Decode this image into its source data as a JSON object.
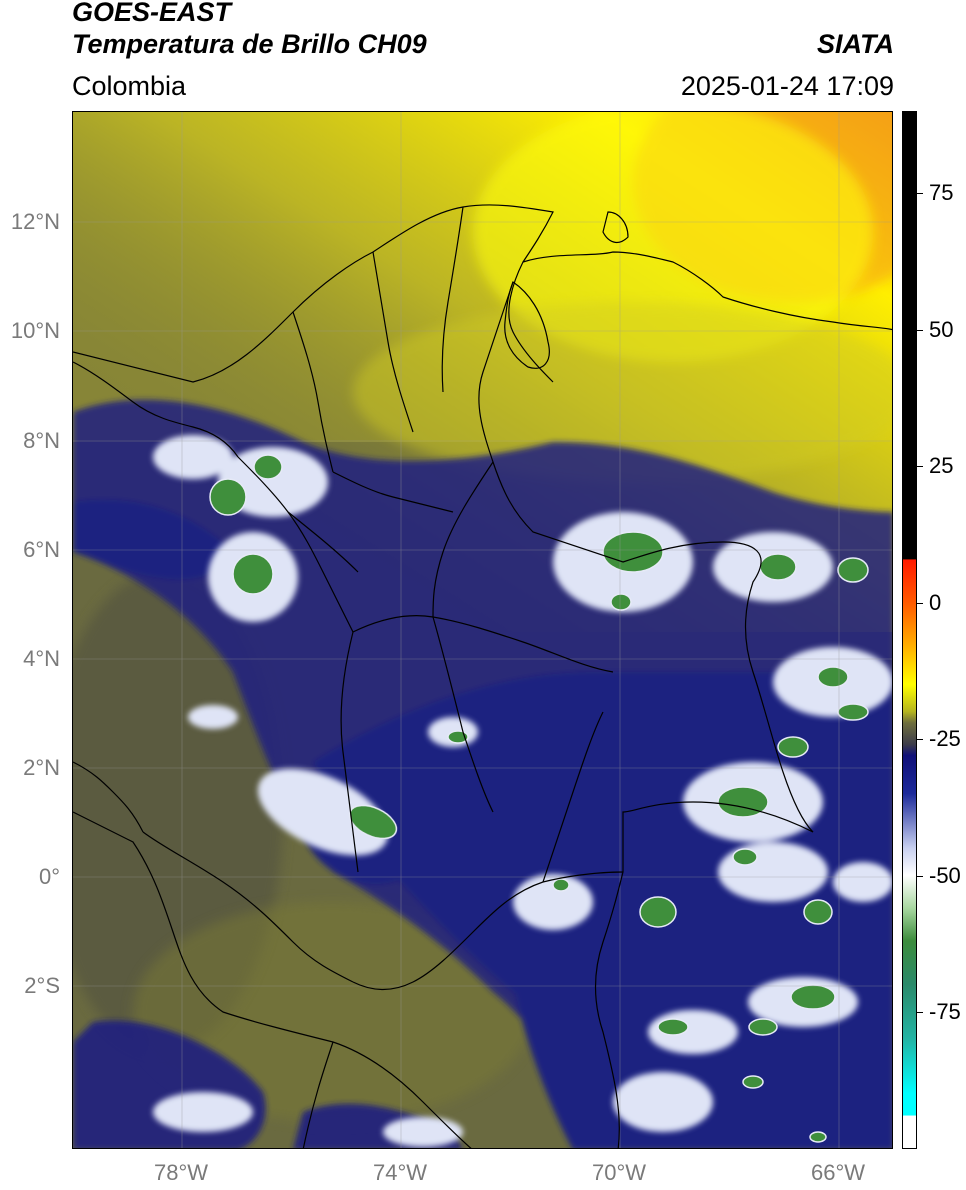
{
  "header": {
    "title": "GOES-EAST",
    "subtitle": "Temperatura de Brillo CH09",
    "organization": "SIATA",
    "region": "Colombia",
    "timestamp": "2025-01-24 17:09"
  },
  "map": {
    "lon_range": [
      -80,
      -65
    ],
    "lat_range": [
      -5,
      14
    ],
    "lat_ticks": [
      {
        "value": 12,
        "label": "12°N"
      },
      {
        "value": 10,
        "label": "10°N"
      },
      {
        "value": 8,
        "label": "8°N"
      },
      {
        "value": 6,
        "label": "6°N"
      },
      {
        "value": 4,
        "label": "4°N"
      },
      {
        "value": 2,
        "label": "2°N"
      },
      {
        "value": 0,
        "label": "0°"
      },
      {
        "value": -2,
        "label": "2°S"
      }
    ],
    "lon_ticks": [
      {
        "value": -78,
        "label": "78°W"
      },
      {
        "value": -74,
        "label": "74°W"
      },
      {
        "value": -70,
        "label": "70°W"
      },
      {
        "value": -66,
        "label": "66°W"
      }
    ],
    "colors": {
      "background_olive": "#6e6e3c",
      "cloud_navy": "#1c1f78",
      "cold_white": "#e8ecf8",
      "very_cold_green": "#3f8f3c",
      "warm_yellow": "#e6e31a",
      "hot_orange": "#f5a516"
    }
  },
  "colorbar": {
    "range": [
      -100,
      90
    ],
    "ticks": [
      {
        "value": 75,
        "label": "75"
      },
      {
        "value": 50,
        "label": "50"
      },
      {
        "value": 25,
        "label": "25"
      },
      {
        "value": 0,
        "label": "0"
      },
      {
        "value": -25,
        "label": "-25"
      },
      {
        "value": -50,
        "label": "-50"
      },
      {
        "value": -75,
        "label": "-75"
      }
    ],
    "stops": [
      {
        "value": 90,
        "color": "#000000"
      },
      {
        "value": 8,
        "color": "#000000"
      },
      {
        "value": 7.9,
        "color": "#ff1a00"
      },
      {
        "value": 0,
        "color": "#ff5a00"
      },
      {
        "value": -8,
        "color": "#ffb000"
      },
      {
        "value": -15,
        "color": "#ffff00"
      },
      {
        "value": -20,
        "color": "#b4b41e"
      },
      {
        "value": -22,
        "color": "#6e6e3c"
      },
      {
        "value": -26,
        "color": "#3c3c4a"
      },
      {
        "value": -28,
        "color": "#101078"
      },
      {
        "value": -35,
        "color": "#1c2a9a"
      },
      {
        "value": -45,
        "color": "#c8d0f0"
      },
      {
        "value": -50,
        "color": "#ffffff"
      },
      {
        "value": -56,
        "color": "#a8d8a0"
      },
      {
        "value": -62,
        "color": "#3c8c3c"
      },
      {
        "value": -70,
        "color": "#2a8a6a"
      },
      {
        "value": -80,
        "color": "#22b4a4"
      },
      {
        "value": -90,
        "color": "#00ffff"
      },
      {
        "value": -94,
        "color": "#00ffff"
      },
      {
        "value": -94.1,
        "color": "#ffffff"
      },
      {
        "value": -100,
        "color": "#ffffff"
      }
    ]
  }
}
